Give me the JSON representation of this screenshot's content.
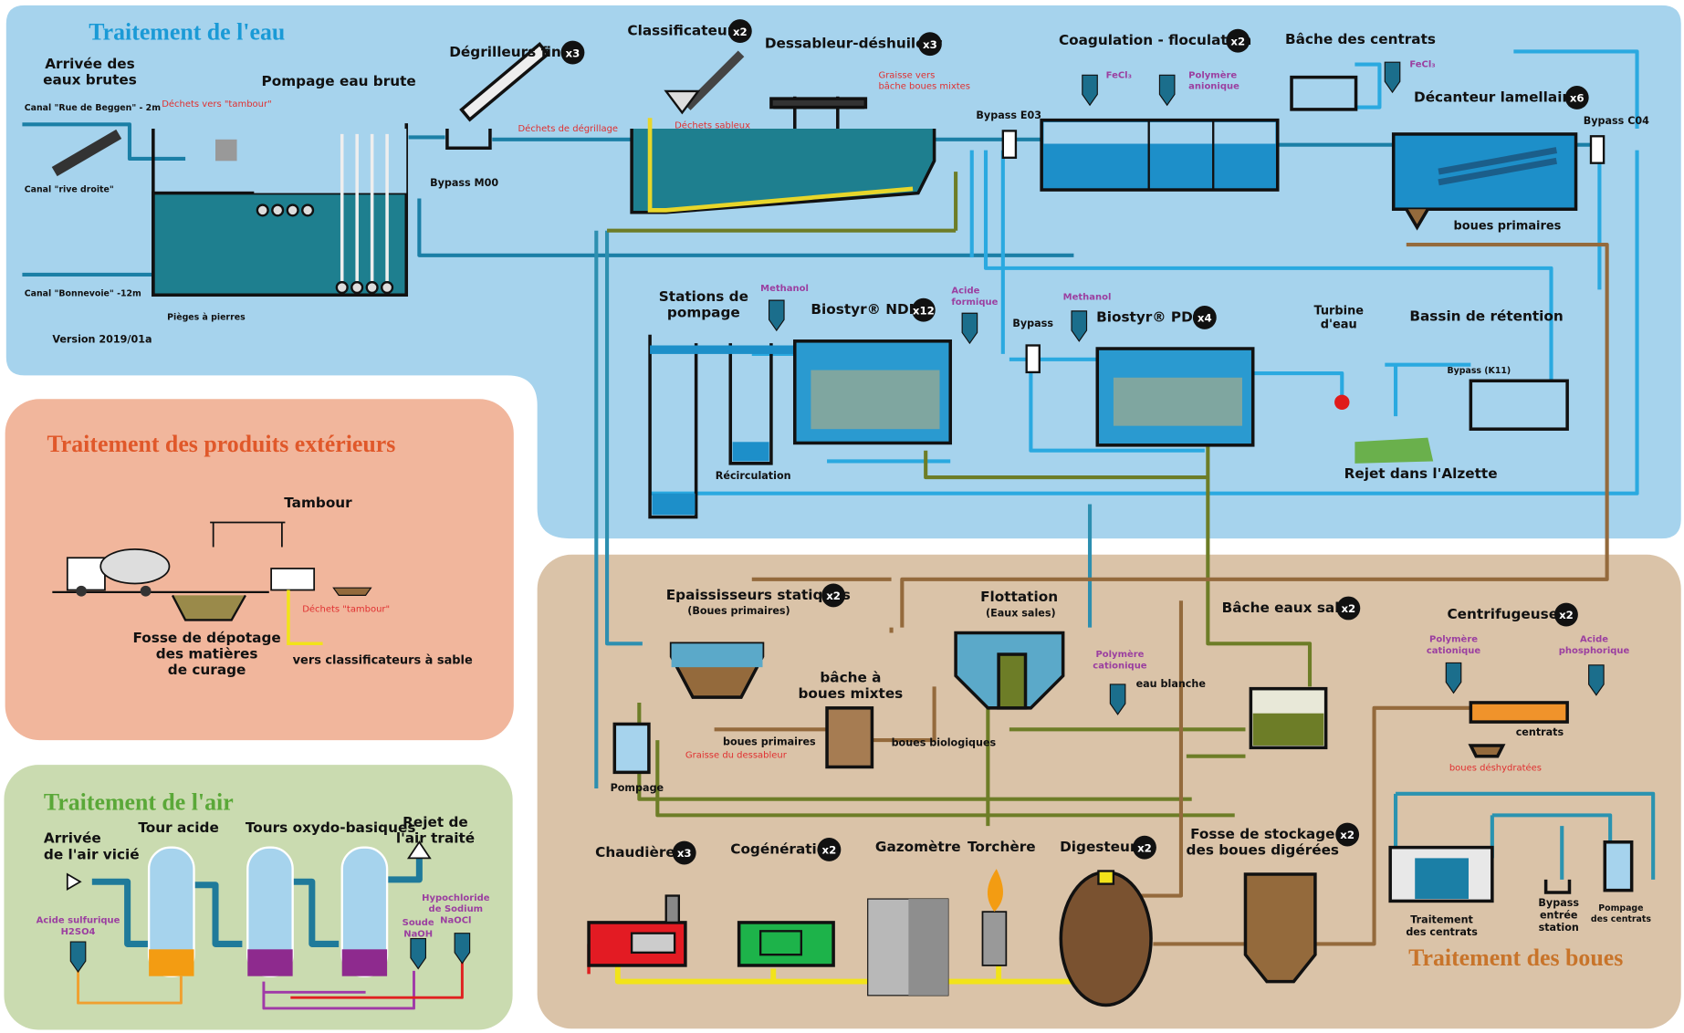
{
  "sections": {
    "water": {
      "title": "Traitement de l'eau",
      "labels": [
        {
          "lines": [
            "Arrivée des",
            "eaux brutes"
          ]
        },
        {
          "lines": [
            "Pompage eau brute"
          ]
        },
        {
          "lines": [
            "Canal \"Rue de Beggen\" - 2m"
          ]
        },
        {
          "lines": [
            "Canal \"rive droite\""
          ]
        },
        {
          "lines": [
            "Canal \"Bonnevoie\" -12m"
          ]
        },
        {
          "lines": [
            "Déchets vers \"tambour\""
          ]
        },
        {
          "lines": [
            "Pièges à pierres"
          ]
        },
        {
          "lines": [
            "Bypass M00"
          ]
        },
        {
          "lines": [
            "Version 2019/01a"
          ]
        },
        {
          "lines": [
            "Dégrilleurs fins"
          ],
          "count": "x3"
        },
        {
          "lines": [
            "Déchets de dégrillage"
          ]
        },
        {
          "lines": [
            "Classificateur"
          ],
          "count": "x2"
        },
        {
          "lines": [
            "Déchets sableux"
          ]
        },
        {
          "lines": [
            "Dessableur-déshuileur"
          ],
          "count": "x3"
        },
        {
          "lines": [
            "Graisse vers",
            "bâche boues mixtes"
          ]
        },
        {
          "lines": [
            "Coagulation - floculation"
          ],
          "count": "x2"
        },
        {
          "lines": [
            "FeCl₃"
          ]
        },
        {
          "lines": [
            "Polymère",
            "anionique"
          ]
        },
        {
          "lines": [
            "Bypass E03"
          ]
        },
        {
          "lines": [
            "Bâche des centrats"
          ]
        },
        {
          "lines": [
            "FeCl₃"
          ]
        },
        {
          "lines": [
            "Décanteur lamellaire"
          ],
          "count": "x6"
        },
        {
          "lines": [
            "Bypass  C04"
          ]
        },
        {
          "lines": [
            "boues primaires"
          ]
        },
        {
          "lines": [
            "Stations de",
            "pompage"
          ]
        },
        {
          "lines": [
            "Methanol"
          ]
        },
        {
          "lines": [
            "Biostyr® NDN"
          ],
          "count": "x12"
        },
        {
          "lines": [
            "Acide",
            "formique"
          ]
        },
        {
          "lines": [
            "Bypass"
          ]
        },
        {
          "lines": [
            "Methanol"
          ]
        },
        {
          "lines": [
            "Biostyr® PDN"
          ],
          "count": "x4"
        },
        {
          "lines": [
            "Turbine",
            "d'eau"
          ]
        },
        {
          "lines": [
            "Bassin de rétention"
          ]
        },
        {
          "lines": [
            "Bypass (K11)"
          ]
        },
        {
          "lines": [
            "Récirculation"
          ]
        },
        {
          "lines": [
            "Rejet dans  l'Alzette"
          ]
        }
      ]
    },
    "external": {
      "title": "Traitement des produits extérieurs",
      "labels": [
        {
          "lines": [
            "Tambour"
          ]
        },
        {
          "lines": [
            "Déchets \"tambour\""
          ]
        },
        {
          "lines": [
            "Fosse de dépotage",
            "des matières",
            "de curage"
          ]
        },
        {
          "lines": [
            "vers classificateurs à sable"
          ]
        }
      ]
    },
    "air": {
      "title": "Traitement de l'air",
      "labels": [
        {
          "lines": [
            "Arrivée",
            "de l'air vicié"
          ]
        },
        {
          "lines": [
            "Tour acide"
          ]
        },
        {
          "lines": [
            "Tours oxydo-basiques"
          ]
        },
        {
          "lines": [
            "Rejet de",
            "l'air traité"
          ]
        },
        {
          "lines": [
            "Acide sulfurique",
            "H2SO4"
          ]
        },
        {
          "lines": [
            "Soude",
            "NaOH"
          ]
        },
        {
          "lines": [
            "Hypochloride",
            "de Sodium",
            "NaOCl"
          ]
        }
      ]
    },
    "sludge": {
      "title": "Traitement des boues",
      "labels": [
        {
          "lines": [
            "Epaississeurs statiques"
          ],
          "count": "x2"
        },
        {
          "lines": [
            "(Boues primaires)"
          ]
        },
        {
          "lines": [
            "Flottation"
          ]
        },
        {
          "lines": [
            "(Eaux sales)"
          ]
        },
        {
          "lines": [
            "Bâche eaux sales"
          ],
          "count": "x2"
        },
        {
          "lines": [
            "Centrifugeuses"
          ],
          "count": "x2"
        },
        {
          "lines": [
            "Polymère",
            "cationique"
          ]
        },
        {
          "lines": [
            "Acide",
            "phosphorique"
          ]
        },
        {
          "lines": [
            "Polymère",
            "cationique"
          ]
        },
        {
          "lines": [
            "eau blanche"
          ]
        },
        {
          "lines": [
            "bâche à",
            "boues mixtes"
          ]
        },
        {
          "lines": [
            "boues primaires"
          ]
        },
        {
          "lines": [
            "Graisse du dessableur"
          ]
        },
        {
          "lines": [
            "boues biologiques"
          ]
        },
        {
          "lines": [
            "Pompage"
          ]
        },
        {
          "lines": [
            "centrats"
          ]
        },
        {
          "lines": [
            "boues déshydratées"
          ]
        },
        {
          "lines": [
            "Chaudière"
          ],
          "count": "x3"
        },
        {
          "lines": [
            "Cogénération"
          ],
          "count": "x2"
        },
        {
          "lines": [
            "Gazomètre"
          ]
        },
        {
          "lines": [
            "Torchère"
          ]
        },
        {
          "lines": [
            "Digesteur"
          ],
          "count": "x2"
        },
        {
          "lines": [
            "Fosse de stockage",
            "des boues digérées"
          ],
          "count": "x2"
        },
        {
          "lines": [
            "Traitement",
            "des centrats"
          ]
        },
        {
          "lines": [
            "Bypass",
            "entrée",
            "station"
          ]
        },
        {
          "lines": [
            "Pompage",
            "des centrats"
          ]
        }
      ]
    }
  }
}
